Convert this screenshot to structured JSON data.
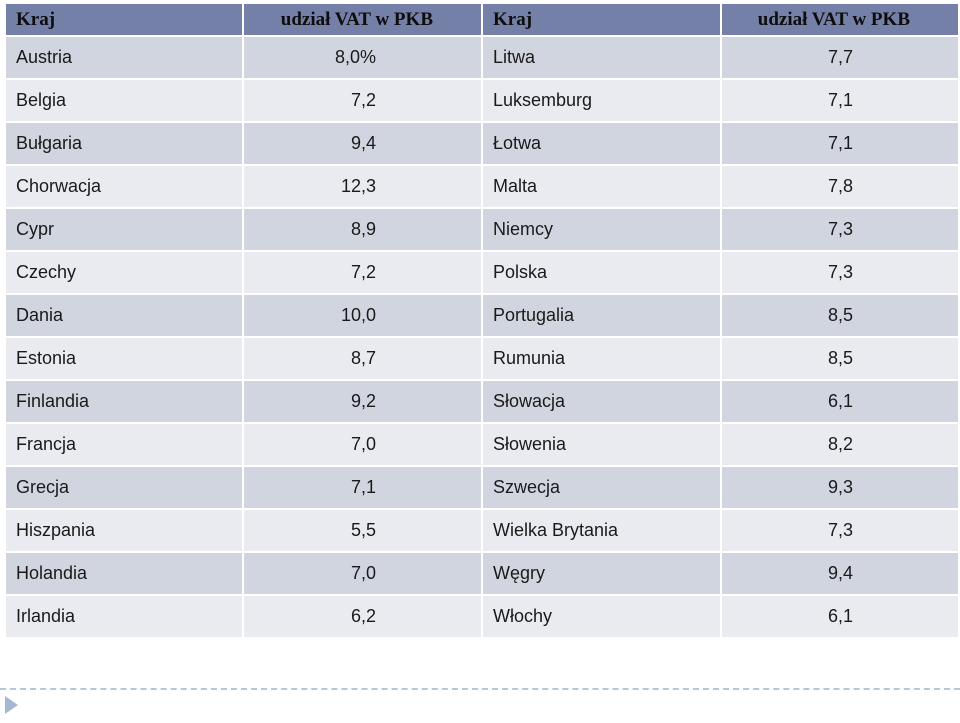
{
  "table": {
    "headers": [
      "Kraj",
      "udział VAT w PKB",
      "Kraj",
      "udział VAT w PKB"
    ],
    "rows": [
      [
        "Austria",
        "8,0%",
        "Litwa",
        "7,7"
      ],
      [
        "Belgia",
        "7,2",
        "Luksemburg",
        "7,1"
      ],
      [
        "Bułgaria",
        "9,4",
        "Łotwa",
        "7,1"
      ],
      [
        "Chorwacja",
        "12,3",
        "Malta",
        "7,8"
      ],
      [
        "Cypr",
        "8,9",
        "Niemcy",
        "7,3"
      ],
      [
        "Czechy",
        "7,2",
        "Polska",
        "7,3"
      ],
      [
        "Dania",
        "10,0",
        "Portugalia",
        "8,5"
      ],
      [
        "Estonia",
        "8,7",
        "Rumunia",
        "8,5"
      ],
      [
        "Finlandia",
        "9,2",
        "Słowacja",
        "6,1"
      ],
      [
        "Francja",
        "7,0",
        "Słowenia",
        "8,2"
      ],
      [
        "Grecja",
        "7,1",
        "Szwecja",
        "9,3"
      ],
      [
        "Hiszpania",
        "5,5",
        "Wielka Brytania",
        "7,3"
      ],
      [
        "Holandia",
        "7,0",
        "Węgry",
        "9,4"
      ],
      [
        "Irlandia",
        "6,2",
        "Włochy",
        "6,1"
      ]
    ]
  },
  "colors": {
    "header_bg": "#7580a8",
    "row_odd_bg": "#d1d5e0",
    "row_even_bg": "#e9ebf1",
    "footer_rule": "#b4c8d8",
    "footer_arrow": "#a5b8cf"
  },
  "icons": {
    "footer_marker": "triangle-right-icon"
  }
}
